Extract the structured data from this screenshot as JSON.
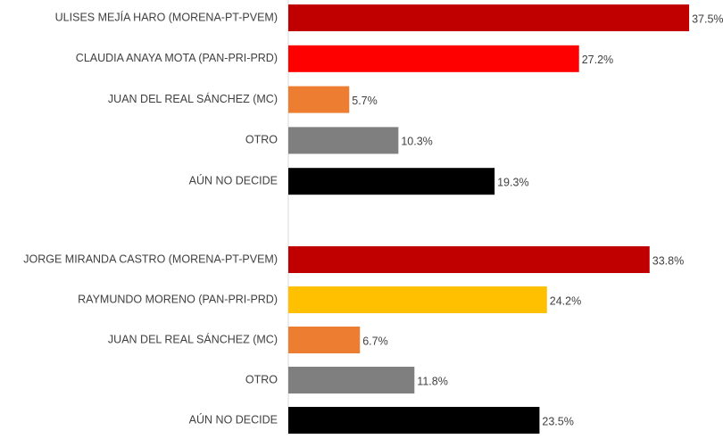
{
  "chart_data": [
    {
      "type": "bar",
      "orientation": "horizontal",
      "categories": [
        "ULISES MEJÍA HARO (MORENA-PT-PVEM)",
        "CLAUDIA ANAYA MOTA (PAN-PRI-PRD)",
        "JUAN DEL REAL SÁNCHEZ (MC)",
        "OTRO",
        "AÚN NO DECIDE"
      ],
      "values": [
        37.5,
        27.2,
        5.7,
        10.3,
        19.3
      ],
      "value_labels": [
        "37.5%",
        "27.2%",
        "5.7%",
        "10.3%",
        "19.3%"
      ],
      "colors": [
        "#c00000",
        "#ff0000",
        "#ed7d31",
        "#7f7f7f",
        "#000000"
      ],
      "xlim": [
        0,
        40
      ]
    },
    {
      "type": "bar",
      "orientation": "horizontal",
      "categories": [
        "JORGE MIRANDA CASTRO (MORENA-PT-PVEM)",
        "RAYMUNDO MORENO  (PAN-PRI-PRD)",
        "JUAN DEL REAL SÁNCHEZ (MC)",
        "OTRO",
        "AÚN NO DECIDE"
      ],
      "values": [
        33.8,
        24.2,
        6.7,
        11.8,
        23.5
      ],
      "value_labels": [
        "33.8%",
        "24.2%",
        "6.7%",
        "11.8%",
        "23.5%"
      ],
      "colors": [
        "#c00000",
        "#ffc000",
        "#ed7d31",
        "#7f7f7f",
        "#000000"
      ],
      "xlim": [
        0,
        40
      ]
    }
  ]
}
